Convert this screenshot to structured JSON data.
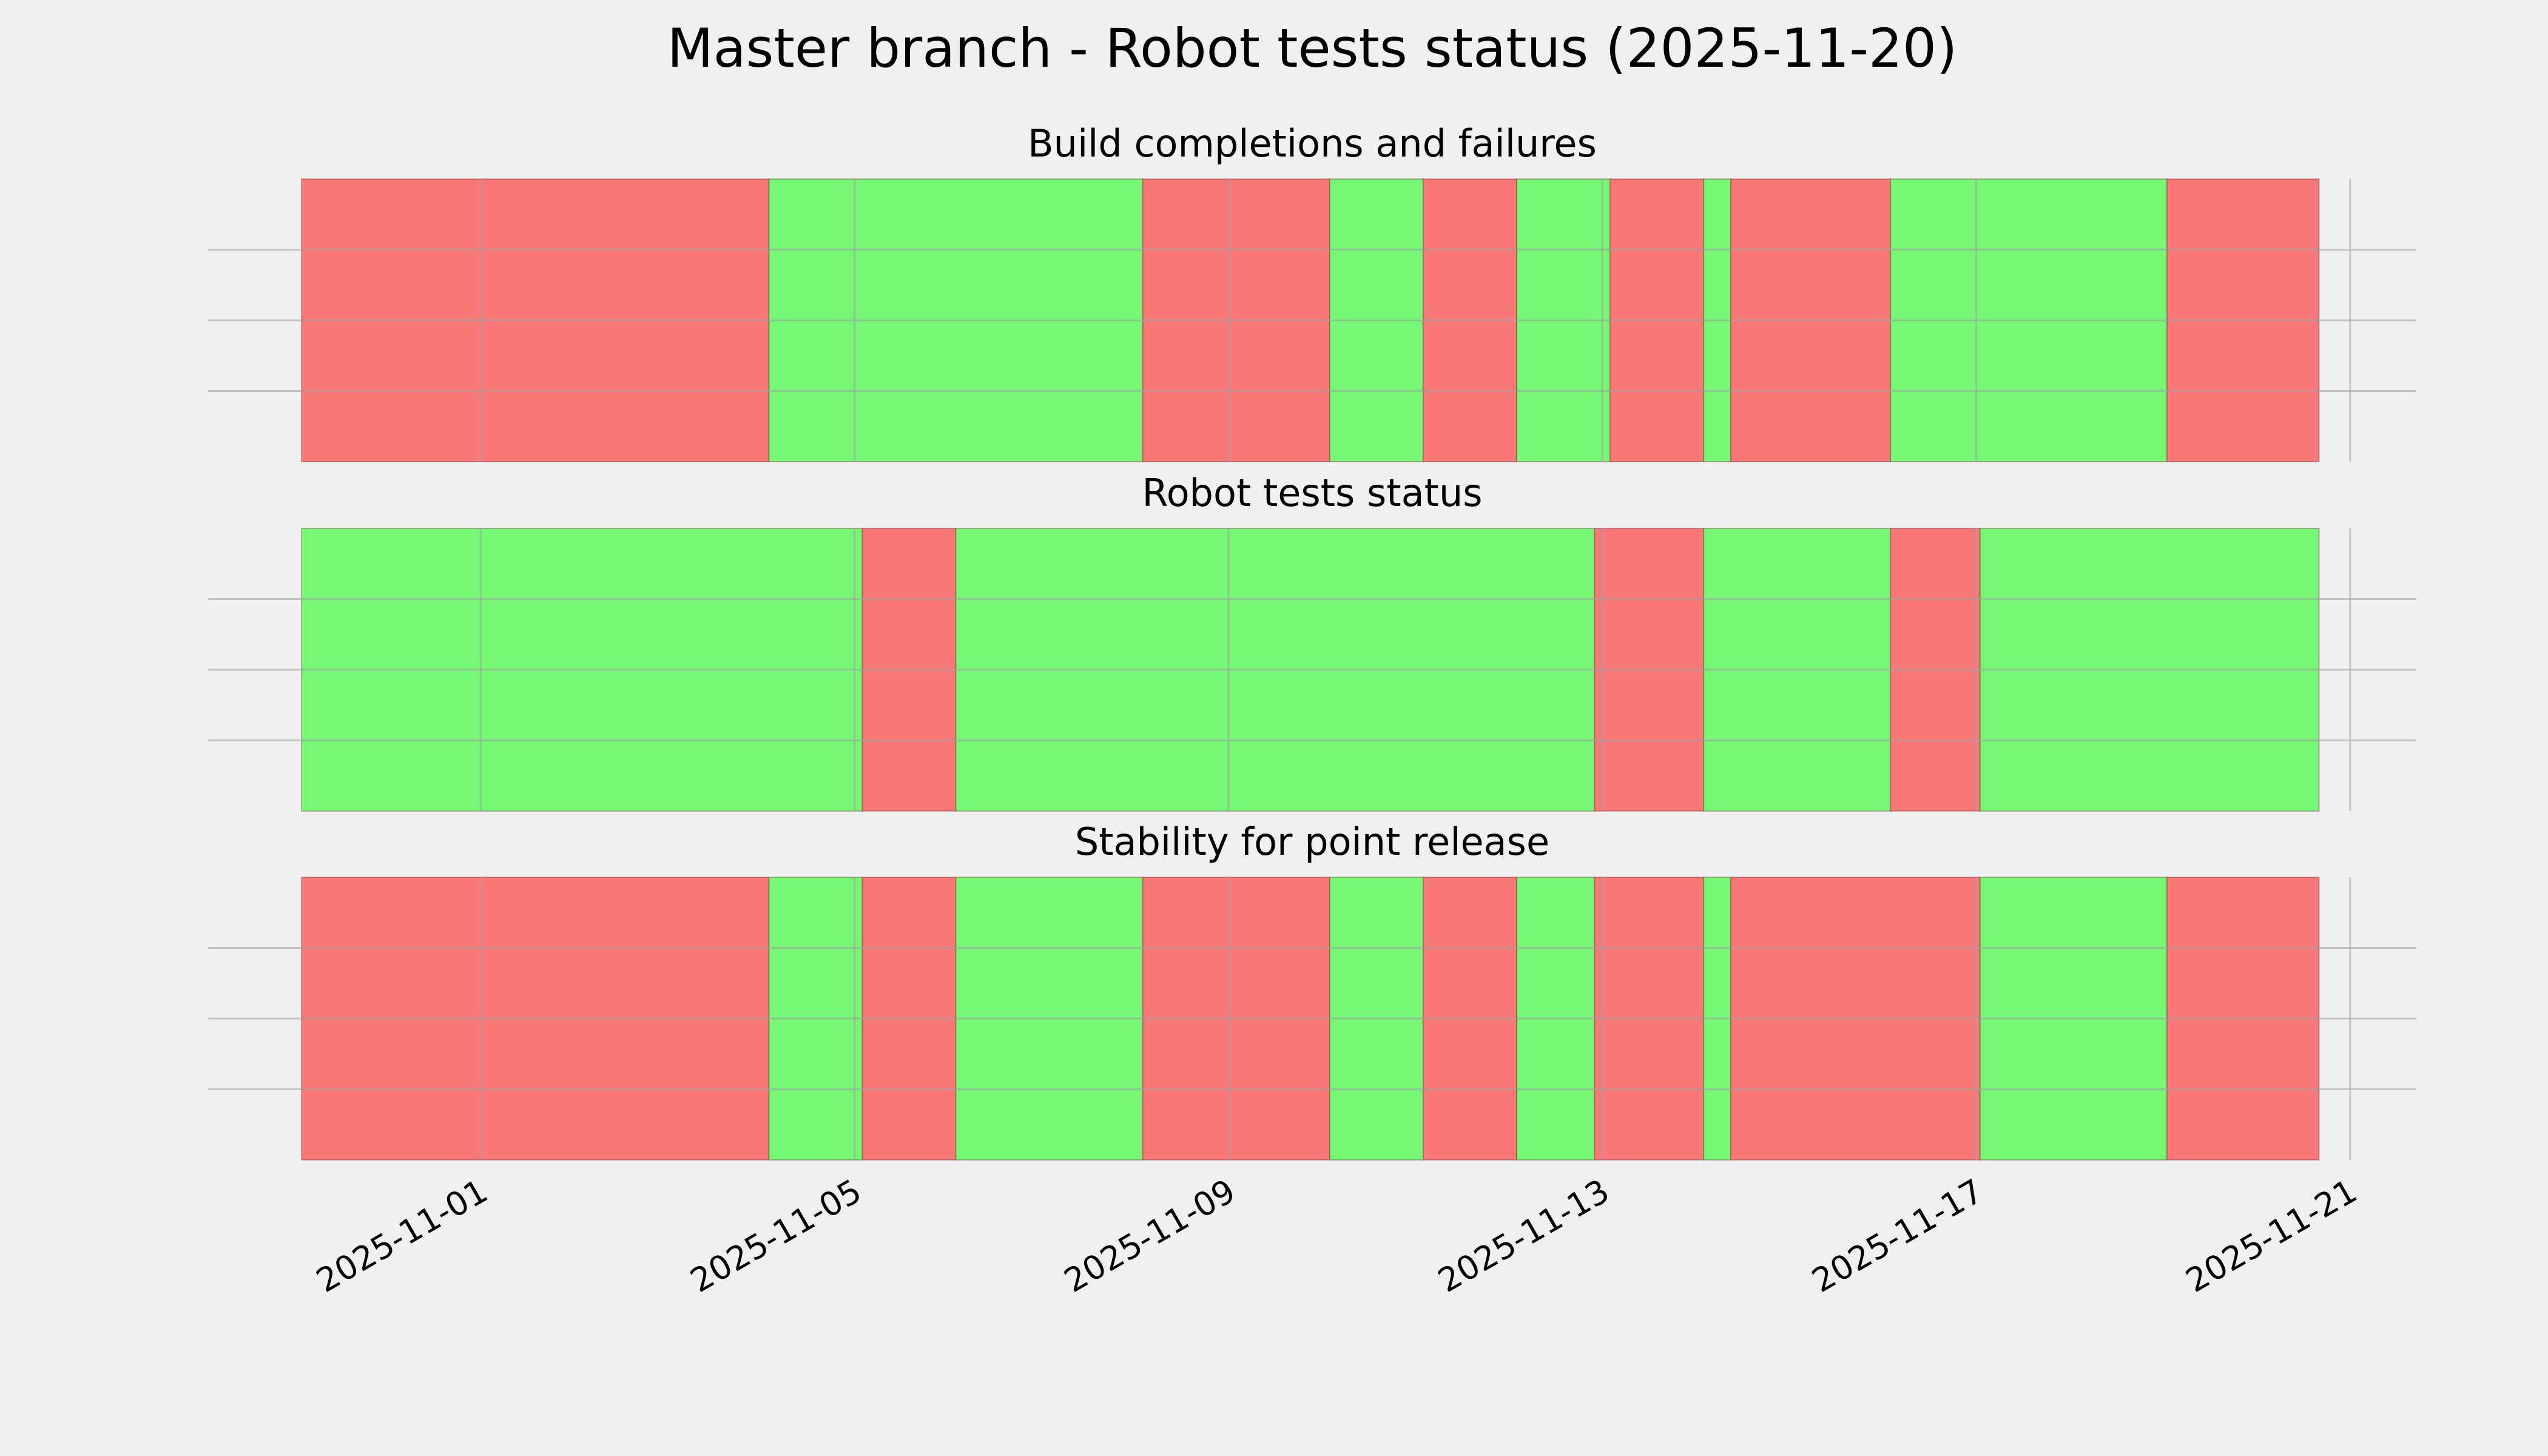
{
  "title": "Master branch - Robot tests status (2025-11-20)",
  "chart_data": [
    {
      "type": "timeline",
      "title": "Build completions and failures",
      "xlim": [
        "2025-10-29T02:00",
        "2025-11-21T17:00"
      ],
      "xticks": [
        "2025-11-01",
        "2025-11-05",
        "2025-11-09",
        "2025-11-13",
        "2025-11-17",
        "2025-11-21"
      ],
      "ylim": [
        0,
        1
      ],
      "yticks": [
        0.25,
        0.5,
        0.75
      ],
      "show_ytick_labels": false,
      "show_xtick_labels": false,
      "grid": true,
      "segments": [
        {
          "start": "2025-10-30T02:00",
          "end": "2025-11-04T02:00",
          "color": "#f87878"
        },
        {
          "start": "2025-11-04T02:00",
          "end": "2025-11-08T02:00",
          "color": "#76f776"
        },
        {
          "start": "2025-11-08T02:00",
          "end": "2025-11-10T02:00",
          "color": "#f87878"
        },
        {
          "start": "2025-11-10T02:00",
          "end": "2025-11-11T02:00",
          "color": "#76f776"
        },
        {
          "start": "2025-11-11T02:00",
          "end": "2025-11-12T02:00",
          "color": "#f87878"
        },
        {
          "start": "2025-11-12T02:00",
          "end": "2025-11-13T02:00",
          "color": "#76f776"
        },
        {
          "start": "2025-11-13T02:00",
          "end": "2025-11-14T02:00",
          "color": "#f87878"
        },
        {
          "start": "2025-11-14T02:00",
          "end": "2025-11-14T09:00",
          "color": "#76f776"
        },
        {
          "start": "2025-11-14T09:00",
          "end": "2025-11-16T02:00",
          "color": "#f87878"
        },
        {
          "start": "2025-11-16T02:00",
          "end": "2025-11-19T01:00",
          "color": "#76f776"
        },
        {
          "start": "2025-11-19T01:00",
          "end": "2025-11-20T16:00",
          "color": "#f87878"
        }
      ]
    },
    {
      "type": "timeline",
      "title": "Robot tests status",
      "xlim": [
        "2025-10-29T02:00",
        "2025-11-21T17:00"
      ],
      "xticks": [
        "2025-11-01",
        "2025-11-05",
        "2025-11-09",
        "2025-11-13",
        "2025-11-17",
        "2025-11-21"
      ],
      "ylim": [
        0,
        1
      ],
      "yticks": [
        0.25,
        0.5,
        0.75
      ],
      "show_ytick_labels": false,
      "show_xtick_labels": false,
      "grid": true,
      "segments": [
        {
          "start": "2025-10-30T02:00",
          "end": "2025-11-05T02:00",
          "color": "#76f776"
        },
        {
          "start": "2025-11-05T02:00",
          "end": "2025-11-06T02:00",
          "color": "#f87878"
        },
        {
          "start": "2025-11-06T02:00",
          "end": "2025-11-12T22:00",
          "color": "#76f776"
        },
        {
          "start": "2025-11-12T22:00",
          "end": "2025-11-14T02:00",
          "color": "#f87878"
        },
        {
          "start": "2025-11-14T02:00",
          "end": "2025-11-16T02:00",
          "color": "#76f776"
        },
        {
          "start": "2025-11-16T02:00",
          "end": "2025-11-17T01:00",
          "color": "#f87878"
        },
        {
          "start": "2025-11-17T01:00",
          "end": "2025-11-20T16:00",
          "color": "#76f776"
        }
      ]
    },
    {
      "type": "timeline",
      "title": "Stability for point release",
      "xlim": [
        "2025-10-29T02:00",
        "2025-11-21T17:00"
      ],
      "xticks": [
        "2025-11-01",
        "2025-11-05",
        "2025-11-09",
        "2025-11-13",
        "2025-11-17",
        "2025-11-21"
      ],
      "ylim": [
        0,
        1
      ],
      "yticks": [
        0.25,
        0.5,
        0.75
      ],
      "show_ytick_labels": false,
      "show_xtick_labels": true,
      "grid": true,
      "segments": [
        {
          "start": "2025-10-30T02:00",
          "end": "2025-11-04T02:00",
          "color": "#f87878"
        },
        {
          "start": "2025-11-04T02:00",
          "end": "2025-11-05T02:00",
          "color": "#76f776"
        },
        {
          "start": "2025-11-05T02:00",
          "end": "2025-11-06T02:00",
          "color": "#f87878"
        },
        {
          "start": "2025-11-06T02:00",
          "end": "2025-11-08T02:00",
          "color": "#76f776"
        },
        {
          "start": "2025-11-08T02:00",
          "end": "2025-11-10T02:00",
          "color": "#f87878"
        },
        {
          "start": "2025-11-10T02:00",
          "end": "2025-11-11T02:00",
          "color": "#76f776"
        },
        {
          "start": "2025-11-11T02:00",
          "end": "2025-11-12T02:00",
          "color": "#f87878"
        },
        {
          "start": "2025-11-12T02:00",
          "end": "2025-11-12T22:00",
          "color": "#76f776"
        },
        {
          "start": "2025-11-12T22:00",
          "end": "2025-11-14T02:00",
          "color": "#f87878"
        },
        {
          "start": "2025-11-14T02:00",
          "end": "2025-11-14T09:00",
          "color": "#76f776"
        },
        {
          "start": "2025-11-14T09:00",
          "end": "2025-11-17T01:00",
          "color": "#f87878"
        },
        {
          "start": "2025-11-17T01:00",
          "end": "2025-11-19T01:00",
          "color": "#76f776"
        },
        {
          "start": "2025-11-19T01:00",
          "end": "2025-11-20T16:00",
          "color": "#f87878"
        }
      ]
    }
  ]
}
